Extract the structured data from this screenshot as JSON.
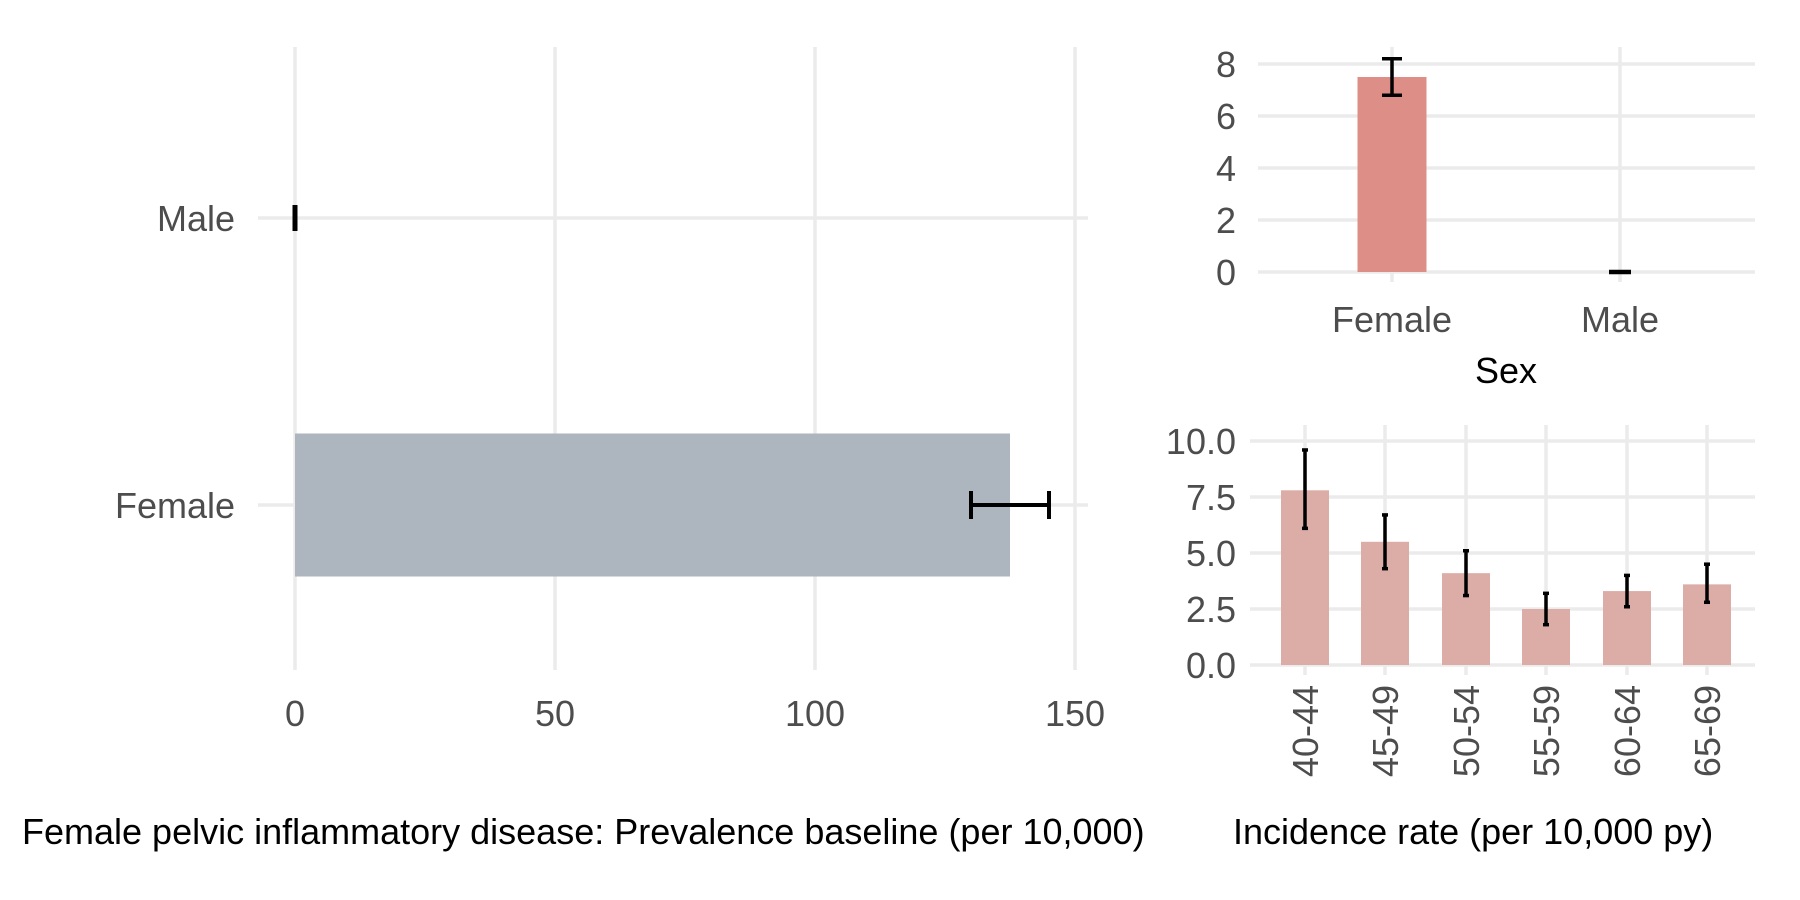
{
  "colors": {
    "prevalence_bar": "#adb5be",
    "sex_bar": "#dd8f87",
    "age_bar": "#dcada7",
    "error_bar": "#000000",
    "grid": "#ebebeb",
    "tick_text": "#4d4d4d"
  },
  "chart_data": [
    {
      "type": "bar",
      "orientation": "horizontal",
      "categories": [
        "Female",
        "Male"
      ],
      "values": [
        137.5,
        0
      ],
      "error_low": [
        130,
        0
      ],
      "error_high": [
        145,
        0
      ],
      "xlabel": "Female pelvic inflammatory disease: Prevalence baseline (per 10,000)",
      "ylabel": "",
      "xlim": [
        0,
        152
      ],
      "x_ticks": [
        "0",
        "50",
        "100",
        "150"
      ],
      "grid": true
    },
    {
      "type": "bar",
      "categories": [
        "Female",
        "Male"
      ],
      "values": [
        7.5,
        0
      ],
      "error_low": [
        6.8,
        0
      ],
      "error_high": [
        8.2,
        0
      ],
      "xlabel": "Sex",
      "ylabel": "",
      "ylim": [
        0,
        8.6
      ],
      "y_ticks": [
        "0",
        "2",
        "4",
        "6",
        "8"
      ],
      "grid": true
    },
    {
      "type": "bar",
      "categories": [
        "40-44",
        "45-49",
        "50-54",
        "55-59",
        "60-64",
        "65-69"
      ],
      "values": [
        7.8,
        5.5,
        4.1,
        2.5,
        3.3,
        3.6
      ],
      "error_low": [
        6.1,
        4.3,
        3.1,
        1.8,
        2.6,
        2.8
      ],
      "error_high": [
        9.6,
        6.7,
        5.1,
        3.2,
        4.0,
        4.5
      ],
      "xlabel": "Incidence rate (per 10,000 py)",
      "ylabel": "",
      "ylim": [
        0,
        10.8
      ],
      "y_ticks": [
        "0.0",
        "2.5",
        "5.0",
        "7.5",
        "10.0"
      ],
      "grid": true
    }
  ]
}
